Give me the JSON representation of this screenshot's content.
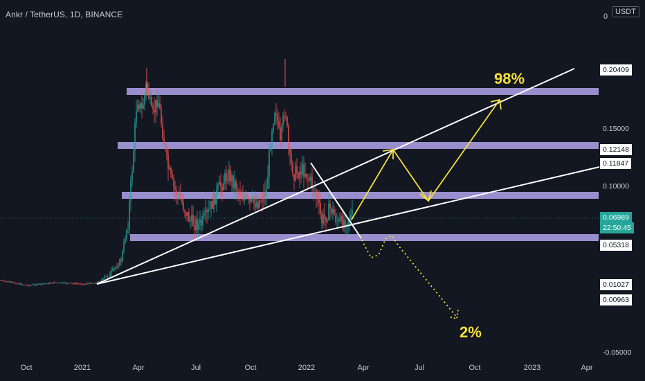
{
  "header": {
    "symbol_title": "Ankr / TetherUS, 1D, BINANCE",
    "currency_badge": "USDT"
  },
  "price_axis": {
    "top_partial": "0",
    "labels": [
      {
        "text": "0.20409",
        "style": "white"
      },
      {
        "text": "0.15000",
        "style": "plain"
      },
      {
        "text": "0.12148",
        "style": "white"
      },
      {
        "text": "0.11847",
        "style": "white"
      },
      {
        "text": "0.10000",
        "style": "plain"
      },
      {
        "text": "0.06989",
        "style": "green"
      },
      {
        "text": "22:50:45",
        "style": "green"
      },
      {
        "text": "0.05318",
        "style": "white"
      },
      {
        "text": "0.01027",
        "style": "white"
      },
      {
        "text": "0.00963",
        "style": "white"
      },
      {
        "text": "-0.05000",
        "style": "plain"
      }
    ]
  },
  "time_axis": {
    "labels": [
      "Oct",
      "2021",
      "Apr",
      "Jul",
      "Oct",
      "2022",
      "Apr",
      "Jul",
      "Oct",
      "2023",
      "Apr"
    ]
  },
  "annotations": {
    "upside": "98%",
    "downside": "2%"
  },
  "colors": {
    "background": "#131722",
    "zone": "#a89be0",
    "trendline": "#ffffff",
    "projection": "#f5e03a",
    "candle_up": "#26a69a",
    "candle_down": "#ef5350"
  }
}
